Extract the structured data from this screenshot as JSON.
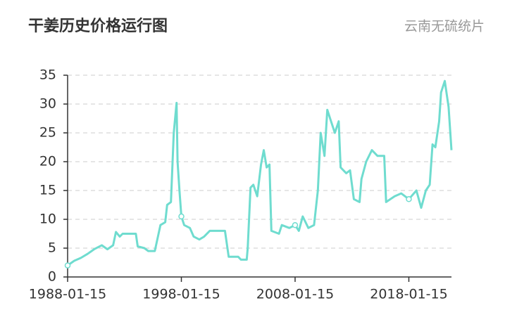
{
  "chart_data": {
    "type": "line",
    "title": "干姜历史价格运行图",
    "subtitle": "云南无硫统片",
    "x": [
      "1988-01-15",
      "1988-08-15",
      "1989-03-15",
      "1989-10-15",
      "1990-05-15",
      "1991-01-15",
      "1991-07-15",
      "1992-01-15",
      "1992-04-15",
      "1992-08-15",
      "1992-11-15",
      "1994-01-15",
      "1994-03-15",
      "1994-10-15",
      "1995-02-15",
      "1995-09-15",
      "1996-03-15",
      "1996-08-15",
      "1996-10-15",
      "1997-02-15",
      "1997-05-15",
      "1997-08-15",
      "1997-09-15",
      "1997-11-15",
      "1998-01-15",
      "1998-04-15",
      "1998-10-15",
      "1999-02-15",
      "1999-08-15",
      "2000-01-15",
      "2000-07-15",
      "2001-11-15",
      "2002-03-15",
      "2003-01-15",
      "2003-04-15",
      "2003-10-15",
      "2003-11-15",
      "2004-02-15",
      "2004-05-15",
      "2004-09-15",
      "2005-01-15",
      "2005-04-15",
      "2005-07-15",
      "2005-10-15",
      "2005-12-15",
      "2006-08-15",
      "2006-11-15",
      "2007-07-15",
      "2008-01-15",
      "2008-05-15",
      "2008-09-15",
      "2009-03-15",
      "2009-09-15",
      "2010-01-15",
      "2010-04-15",
      "2010-08-15",
      "2010-11-15",
      "2011-03-15",
      "2011-07-15",
      "2011-11-15",
      "2012-01-15",
      "2012-07-15",
      "2012-11-15",
      "2013-03-15",
      "2013-09-15",
      "2013-11-15",
      "2014-04-15",
      "2014-10-15",
      "2015-04-15",
      "2015-11-15",
      "2016-01-15",
      "2016-10-15",
      "2017-05-15",
      "2018-01-15",
      "2018-09-15",
      "2019-02-15",
      "2019-07-15",
      "2019-11-15",
      "2020-02-15",
      "2020-05-15",
      "2020-09-15",
      "2020-11-15",
      "2021-03-15",
      "2021-07-15",
      "2021-10-15"
    ],
    "values": [
      2.0,
      2.8,
      3.3,
      4.0,
      4.8,
      5.5,
      4.8,
      5.5,
      7.8,
      7.0,
      7.5,
      7.5,
      5.3,
      5.0,
      4.5,
      4.5,
      9.0,
      9.5,
      12.5,
      13,
      25,
      30.2,
      20,
      15,
      10.5,
      9,
      8.5,
      7,
      6.5,
      7,
      8,
      8,
      3.5,
      3.5,
      3,
      3,
      5,
      15.5,
      16,
      14,
      19.5,
      22,
      19,
      19.5,
      8,
      7.5,
      9,
      8.5,
      9,
      8,
      10.5,
      8.5,
      9,
      15,
      25,
      21,
      29,
      27,
      25,
      27,
      19,
      18,
      18.5,
      13.5,
      13,
      17,
      20,
      22,
      21,
      21,
      13,
      14,
      14.5,
      13.5,
      15,
      12,
      15,
      16,
      23,
      22.5,
      27,
      32,
      34,
      29.5,
      22
    ],
    "color": "#6fdccf",
    "xlim": [
      "1988-01-15",
      "2021-10-15"
    ],
    "xticks": [
      "1988-01-15",
      "1998-01-15",
      "2008-01-15",
      "2018-01-15"
    ],
    "ylim": [
      0,
      35
    ],
    "yticks": [
      0,
      5,
      10,
      15,
      20,
      25,
      30,
      35
    ],
    "grid": true
  }
}
